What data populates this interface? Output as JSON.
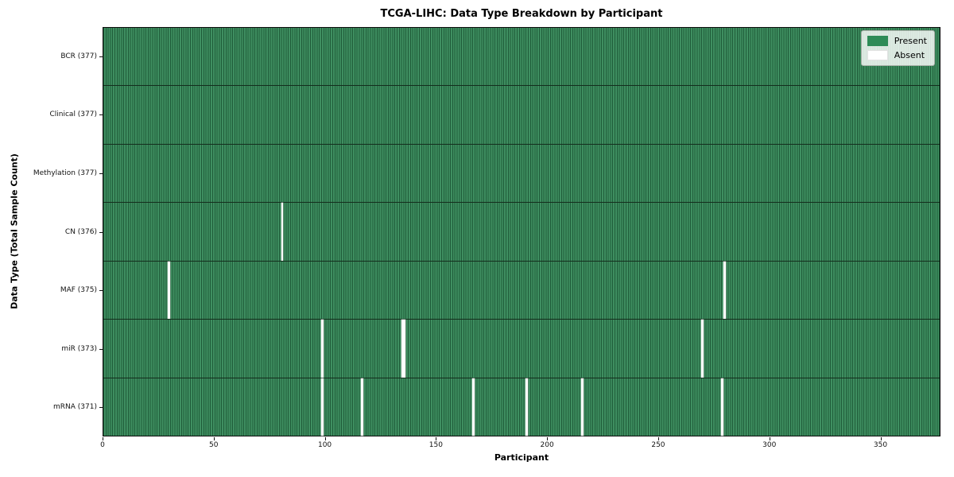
{
  "chart_data": {
    "type": "heatmap",
    "title": "TCGA-LIHC: Data Type Breakdown by Participant",
    "xlabel": "Participant",
    "ylabel": "Data Type (Total Sample Count)",
    "xlim": [
      0,
      377
    ],
    "x_ticks": [
      0,
      50,
      100,
      150,
      200,
      250,
      300,
      350
    ],
    "total_participants": 377,
    "grid": "cell-edges",
    "legend_position": "upper-right",
    "legend": [
      {
        "label": "Present",
        "color": "#2e8b57"
      },
      {
        "label": "Absent",
        "color": "#ffffff"
      }
    ],
    "colors": {
      "present": "#3f8f61",
      "present_edge": "#1f5c39",
      "absent": "#ffffff",
      "row_separator": "#142d1d"
    },
    "rows": [
      {
        "data_type": "BCR",
        "label": "BCR (377)",
        "present_count": 377,
        "absent_count": 0,
        "absent_participants": []
      },
      {
        "data_type": "Clinical",
        "label": "Clinical (377)",
        "present_count": 377,
        "absent_count": 0,
        "absent_participants": []
      },
      {
        "data_type": "Methylation",
        "label": "Methylation (377)",
        "present_count": 377,
        "absent_count": 0,
        "absent_participants": []
      },
      {
        "data_type": "CN",
        "label": "CN (376)",
        "present_count": 376,
        "absent_count": 1,
        "absent_participants": [
          80
        ]
      },
      {
        "data_type": "MAF",
        "label": "MAF (375)",
        "present_count": 375,
        "absent_count": 2,
        "absent_participants": [
          29,
          279
        ]
      },
      {
        "data_type": "miR",
        "label": "miR (373)",
        "present_count": 373,
        "absent_count": 4,
        "absent_participants": [
          98,
          134,
          135,
          269
        ]
      },
      {
        "data_type": "mRNA",
        "label": "mRNA (371)",
        "present_count": 371,
        "absent_count": 6,
        "absent_participants": [
          98,
          116,
          166,
          190,
          215,
          278
        ]
      }
    ]
  }
}
